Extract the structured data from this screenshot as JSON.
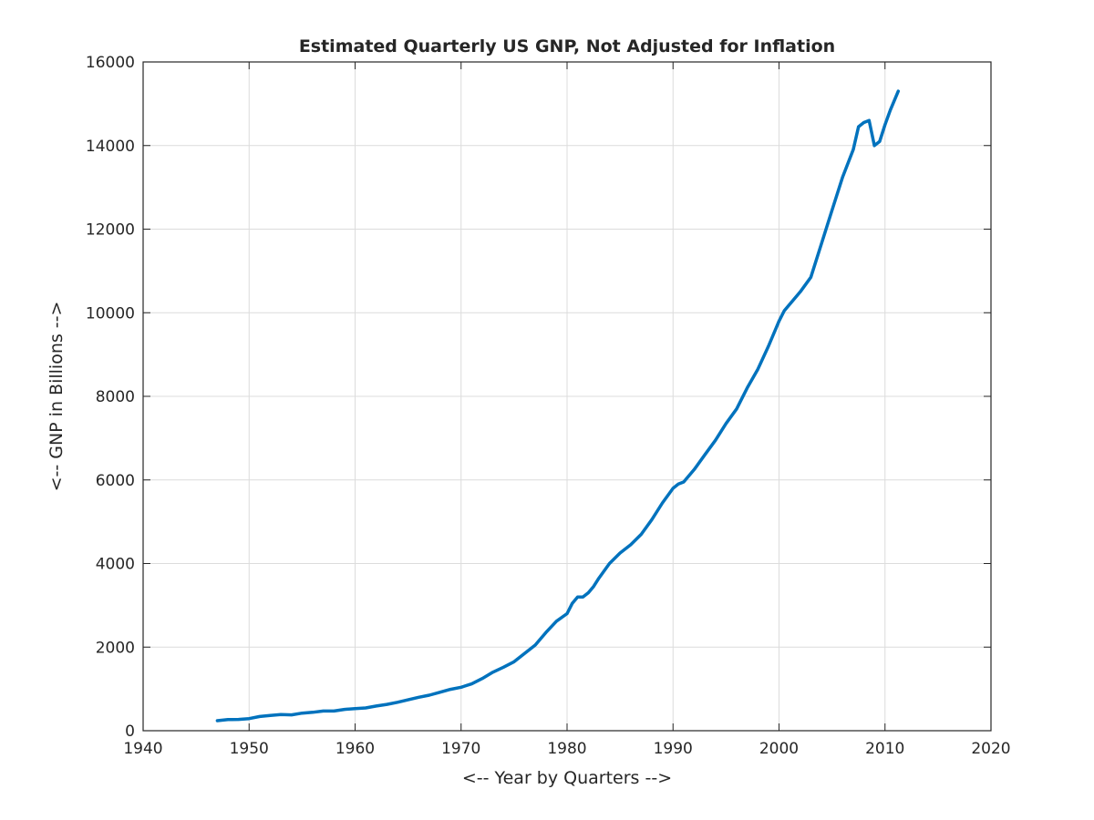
{
  "chart_data": {
    "type": "line",
    "title": "Estimated Quarterly US GNP, Not Adjusted for Inflation",
    "xlabel": "<-- Year by Quarters -->",
    "ylabel": "<-- GNP in Billions -->",
    "xlim": [
      1940,
      2020
    ],
    "ylim": [
      0,
      16000
    ],
    "xticks": [
      1940,
      1950,
      1960,
      1970,
      1980,
      1990,
      2000,
      2010,
      2020
    ],
    "yticks": [
      0,
      2000,
      4000,
      6000,
      8000,
      10000,
      12000,
      14000,
      16000
    ],
    "grid": true,
    "colors": {
      "series": "#0072BD",
      "grid": "#dcdcdc",
      "axes": "#262626"
    },
    "series": [
      {
        "x": [
          1947.0,
          1948.0,
          1949.0,
          1950.0,
          1951.0,
          1952.0,
          1953.0,
          1954.0,
          1955.0,
          1956.0,
          1957.0,
          1958.0,
          1959.0,
          1960.0,
          1961.0,
          1962.0,
          1963.0,
          1964.0,
          1965.0,
          1966.0,
          1967.0,
          1968.0,
          1969.0,
          1970.0,
          1971.0,
          1972.0,
          1973.0,
          1974.0,
          1975.0,
          1976.0,
          1977.0,
          1978.0,
          1979.0,
          1980.0,
          1980.5,
          1981.0,
          1981.5,
          1982.0,
          1982.5,
          1983.0,
          1984.0,
          1985.0,
          1986.0,
          1987.0,
          1988.0,
          1989.0,
          1990.0,
          1990.5,
          1991.0,
          1992.0,
          1993.0,
          1994.0,
          1995.0,
          1996.0,
          1997.0,
          1998.0,
          1999.0,
          2000.0,
          2000.5,
          2001.0,
          2001.5,
          2002.0,
          2003.0,
          2004.0,
          2005.0,
          2006.0,
          2007.0,
          2007.5,
          2008.0,
          2008.5,
          2009.0,
          2009.5,
          2010.0,
          2010.5,
          2011.25
        ],
        "values": [
          240,
          265,
          270,
          290,
          340,
          365,
          385,
          380,
          420,
          440,
          470,
          470,
          510,
          530,
          545,
          590,
          630,
          680,
          740,
          800,
          850,
          920,
          990,
          1040,
          1120,
          1250,
          1400,
          1520,
          1650,
          1850,
          2050,
          2350,
          2620,
          2800,
          3050,
          3200,
          3200,
          3300,
          3450,
          3650,
          4000,
          4250,
          4450,
          4700,
          5050,
          5450,
          5800,
          5900,
          5950,
          6250,
          6600,
          6950,
          7350,
          7700,
          8200,
          8650,
          9200,
          9800,
          10050,
          10200,
          10350,
          10500,
          10850,
          11650,
          12450,
          13250,
          13900,
          14450,
          14550,
          14600,
          14000,
          14100,
          14500,
          14850,
          15300
        ]
      }
    ]
  }
}
